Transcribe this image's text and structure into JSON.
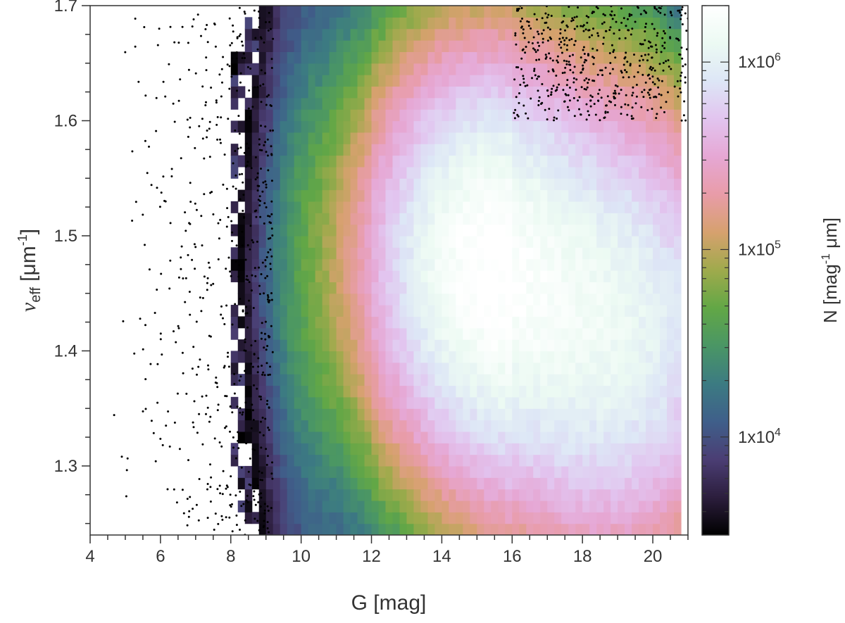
{
  "chart_data": {
    "type": "heatmap",
    "xlabel": "G [mag]",
    "ylabel_main": "ν",
    "ylabel_sub": "eff",
    "ylabel_unit_pre": "[μm",
    "ylabel_unit_sup": "-1",
    "ylabel_unit_post": "]",
    "xlim": [
      4,
      21
    ],
    "ylim": [
      1.24,
      1.7
    ],
    "xticks": [
      4,
      6,
      8,
      10,
      12,
      14,
      16,
      18,
      20
    ],
    "yticks": [
      1.3,
      1.4,
      1.5,
      1.6,
      1.7
    ],
    "colorbar": {
      "scale": "log",
      "range": [
        3000,
        2000000
      ],
      "label_pre": "N [mag",
      "label_sup": "-1",
      "label_post": " μm]",
      "ticks": [
        {
          "value": 1000000,
          "base": "1x10",
          "exp": "6"
        },
        {
          "value": 100000,
          "base": "1x10",
          "exp": "5"
        },
        {
          "value": 10000,
          "base": "1x10",
          "exp": "4"
        }
      ],
      "colormap": [
        "#000000",
        "#2c1e3d",
        "#4b3e74",
        "#3f5f8a",
        "#3c7b82",
        "#4a9665",
        "#62a746",
        "#9faa4c",
        "#d6a16e",
        "#e89ca8",
        "#e6a7d4",
        "#e2c4ef",
        "#dde6f6",
        "#ecfaf3",
        "#ffffff"
      ]
    },
    "density_model": {
      "components": [
        {
          "x_center": 15.2,
          "x_sigma": 1.7,
          "y_center": 1.48,
          "y_sigma": 0.09,
          "x_range": [
            11,
            16
          ],
          "peak": 1500000
        },
        {
          "x_center": 18.7,
          "x_sigma": 2.2,
          "y_center": 1.42,
          "y_sigma": 0.1,
          "x_range": [
            16,
            20.2
          ],
          "peak": 1200000
        }
      ],
      "sparse_band": {
        "x_range": [
          8,
          11.5
        ],
        "density": 6000
      }
    }
  }
}
